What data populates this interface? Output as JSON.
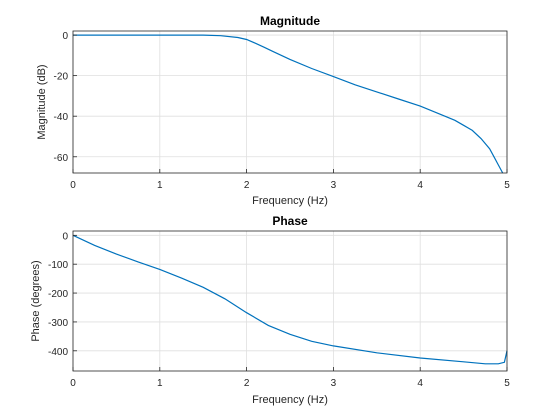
{
  "chart_data": [
    {
      "type": "line",
      "title": "Magnitude",
      "xlabel": "Frequency (Hz)",
      "ylabel": "Magnitude (dB)",
      "xlim": [
        0,
        5
      ],
      "ylim": [
        -68,
        2
      ],
      "xticks": [
        "0",
        "1",
        "2",
        "3",
        "4",
        "5"
      ],
      "yticks": [
        "0",
        "-20",
        "-40",
        "-60"
      ],
      "grid": true,
      "line_color": "#0072BD",
      "x": [
        0,
        0.5,
        1,
        1.5,
        1.7,
        1.9,
        2.0,
        2.1,
        2.2,
        2.3,
        2.5,
        2.75,
        3.0,
        3.25,
        3.5,
        3.75,
        4.0,
        4.2,
        4.4,
        4.5,
        4.6,
        4.7,
        4.8,
        4.85,
        4.9,
        4.95
      ],
      "y": [
        0,
        0,
        0,
        0,
        -0.3,
        -1.2,
        -2.2,
        -4,
        -6,
        -8,
        -12,
        -16.5,
        -20.5,
        -24.5,
        -28,
        -31.5,
        -35,
        -38.5,
        -42,
        -44.5,
        -47,
        -51,
        -56,
        -60,
        -64,
        -68
      ]
    },
    {
      "type": "line",
      "title": "Phase",
      "xlabel": "Frequency (Hz)",
      "ylabel": "Phase (degrees)",
      "xlim": [
        0,
        5
      ],
      "ylim": [
        -470,
        15
      ],
      "xticks": [
        "0",
        "1",
        "2",
        "3",
        "4",
        "5"
      ],
      "yticks": [
        "0",
        "-100",
        "-200",
        "-300",
        "-400"
      ],
      "grid": true,
      "line_color": "#0072BD",
      "x": [
        0,
        0.25,
        0.5,
        0.75,
        1.0,
        1.25,
        1.5,
        1.75,
        2.0,
        2.25,
        2.5,
        2.75,
        3.0,
        3.5,
        4.0,
        4.5,
        4.75,
        4.9,
        4.97,
        5.0
      ],
      "y": [
        0,
        -35,
        -65,
        -92,
        -118,
        -148,
        -180,
        -220,
        -268,
        -312,
        -343,
        -367,
        -383,
        -407,
        -425,
        -438,
        -445,
        -445,
        -440,
        -400
      ]
    }
  ]
}
